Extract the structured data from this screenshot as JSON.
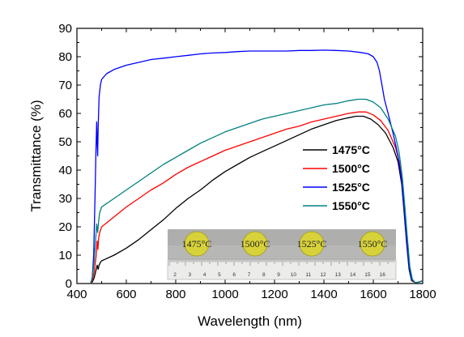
{
  "chart_data": {
    "type": "line",
    "title": "",
    "xlabel": "Wavelength (nm)",
    "ylabel": "Transmittance (%)",
    "xlim": [
      400,
      1800
    ],
    "ylim": [
      0,
      90
    ],
    "xticks": [
      400,
      600,
      800,
      1000,
      1200,
      1400,
      1600,
      1800
    ],
    "yticks": [
      0,
      10,
      20,
      30,
      40,
      50,
      60,
      70,
      80,
      90
    ],
    "grid": false,
    "legend_position": "right",
    "series": [
      {
        "name": "1475°C",
        "color": "#000000",
        "points": [
          [
            455,
            0
          ],
          [
            462,
            0.5
          ],
          [
            470,
            2
          ],
          [
            478,
            5
          ],
          [
            482,
            6.5
          ],
          [
            486,
            5
          ],
          [
            490,
            6.5
          ],
          [
            495,
            7.5
          ],
          [
            500,
            8
          ],
          [
            550,
            10
          ],
          [
            600,
            12.5
          ],
          [
            650,
            15.5
          ],
          [
            700,
            19
          ],
          [
            750,
            22.5
          ],
          [
            800,
            26.5
          ],
          [
            850,
            30
          ],
          [
            900,
            33
          ],
          [
            950,
            36.5
          ],
          [
            1000,
            39.5
          ],
          [
            1050,
            42
          ],
          [
            1100,
            44.5
          ],
          [
            1150,
            46.5
          ],
          [
            1200,
            48.5
          ],
          [
            1250,
            50.5
          ],
          [
            1300,
            52.5
          ],
          [
            1350,
            54.5
          ],
          [
            1400,
            56
          ],
          [
            1450,
            57.5
          ],
          [
            1500,
            58.5
          ],
          [
            1530,
            59
          ],
          [
            1560,
            59
          ],
          [
            1590,
            58
          ],
          [
            1620,
            56
          ],
          [
            1650,
            53
          ],
          [
            1680,
            48
          ],
          [
            1700,
            43
          ],
          [
            1715,
            35
          ],
          [
            1725,
            25
          ],
          [
            1735,
            14
          ],
          [
            1745,
            5
          ],
          [
            1755,
            1
          ],
          [
            1770,
            0.3
          ],
          [
            1785,
            0.5
          ],
          [
            1800,
            1
          ]
        ]
      },
      {
        "name": "1500°C",
        "color": "#ff0000",
        "points": [
          [
            455,
            0
          ],
          [
            462,
            1
          ],
          [
            470,
            4
          ],
          [
            478,
            10
          ],
          [
            482,
            15
          ],
          [
            485,
            12
          ],
          [
            488,
            16
          ],
          [
            492,
            18
          ],
          [
            500,
            20
          ],
          [
            550,
            23.5
          ],
          [
            600,
            27
          ],
          [
            650,
            30
          ],
          [
            700,
            33
          ],
          [
            750,
            35.5
          ],
          [
            800,
            38.5
          ],
          [
            850,
            41
          ],
          [
            900,
            43
          ],
          [
            950,
            45
          ],
          [
            1000,
            47
          ],
          [
            1050,
            48.5
          ],
          [
            1100,
            50
          ],
          [
            1150,
            51.5
          ],
          [
            1200,
            53
          ],
          [
            1250,
            54.5
          ],
          [
            1300,
            55.5
          ],
          [
            1350,
            57
          ],
          [
            1400,
            58
          ],
          [
            1450,
            59
          ],
          [
            1500,
            60
          ],
          [
            1540,
            60.5
          ],
          [
            1570,
            60.5
          ],
          [
            1600,
            59.5
          ],
          [
            1630,
            57.5
          ],
          [
            1660,
            54
          ],
          [
            1690,
            48
          ],
          [
            1705,
            43
          ],
          [
            1718,
            35
          ],
          [
            1728,
            25
          ],
          [
            1738,
            14
          ],
          [
            1748,
            5
          ],
          [
            1758,
            1
          ],
          [
            1770,
            0.3
          ],
          [
            1785,
            0.5
          ],
          [
            1800,
            1
          ]
        ]
      },
      {
        "name": "1525°C",
        "color": "#0000ff",
        "points": [
          [
            455,
            0
          ],
          [
            462,
            2
          ],
          [
            468,
            10
          ],
          [
            473,
            30
          ],
          [
            477,
            47
          ],
          [
            480,
            57
          ],
          [
            482,
            50
          ],
          [
            484,
            45
          ],
          [
            486,
            55
          ],
          [
            490,
            66
          ],
          [
            495,
            70
          ],
          [
            500,
            72
          ],
          [
            520,
            74
          ],
          [
            550,
            75.5
          ],
          [
            600,
            77
          ],
          [
            650,
            78
          ],
          [
            700,
            79
          ],
          [
            750,
            79.5
          ],
          [
            800,
            80
          ],
          [
            850,
            80.5
          ],
          [
            900,
            81
          ],
          [
            950,
            81.3
          ],
          [
            1000,
            81.5
          ],
          [
            1050,
            81.8
          ],
          [
            1100,
            82
          ],
          [
            1150,
            82
          ],
          [
            1200,
            82
          ],
          [
            1250,
            82
          ],
          [
            1300,
            82.2
          ],
          [
            1350,
            82.2
          ],
          [
            1400,
            82.3
          ],
          [
            1450,
            82.2
          ],
          [
            1500,
            82
          ],
          [
            1550,
            81.5
          ],
          [
            1580,
            81
          ],
          [
            1600,
            80
          ],
          [
            1615,
            78
          ],
          [
            1625,
            75
          ],
          [
            1635,
            70
          ],
          [
            1645,
            65
          ],
          [
            1660,
            60
          ],
          [
            1680,
            53
          ],
          [
            1700,
            45
          ],
          [
            1715,
            36
          ],
          [
            1725,
            26
          ],
          [
            1735,
            15
          ],
          [
            1745,
            6
          ],
          [
            1755,
            1.5
          ],
          [
            1770,
            0.3
          ],
          [
            1785,
            0.5
          ],
          [
            1800,
            1
          ]
        ]
      },
      {
        "name": "1550°C",
        "color": "#008080",
        "points": [
          [
            455,
            0
          ],
          [
            462,
            2
          ],
          [
            470,
            8
          ],
          [
            476,
            16
          ],
          [
            480,
            21
          ],
          [
            484,
            18
          ],
          [
            488,
            22
          ],
          [
            492,
            25
          ],
          [
            500,
            27
          ],
          [
            550,
            30
          ],
          [
            600,
            33
          ],
          [
            650,
            36
          ],
          [
            700,
            39
          ],
          [
            750,
            42
          ],
          [
            800,
            44.5
          ],
          [
            850,
            47
          ],
          [
            900,
            49.5
          ],
          [
            950,
            51.5
          ],
          [
            1000,
            53.5
          ],
          [
            1050,
            55
          ],
          [
            1100,
            56.5
          ],
          [
            1150,
            58
          ],
          [
            1200,
            59
          ],
          [
            1250,
            60
          ],
          [
            1300,
            61
          ],
          [
            1350,
            62
          ],
          [
            1400,
            63
          ],
          [
            1450,
            63.5
          ],
          [
            1500,
            64.5
          ],
          [
            1540,
            65
          ],
          [
            1570,
            65
          ],
          [
            1600,
            64
          ],
          [
            1630,
            62
          ],
          [
            1660,
            58
          ],
          [
            1690,
            52
          ],
          [
            1705,
            46
          ],
          [
            1718,
            37
          ],
          [
            1728,
            27
          ],
          [
            1738,
            16
          ],
          [
            1748,
            6
          ],
          [
            1758,
            1.5
          ],
          [
            1770,
            0.3
          ],
          [
            1785,
            0.5
          ],
          [
            1800,
            1
          ]
        ]
      }
    ],
    "inset_photo_labels": [
      "1475°C",
      "1500°C",
      "1525°C",
      "1550°C"
    ],
    "inset_ruler_labels": [
      "2",
      "3",
      "4",
      "5",
      "6",
      "7",
      "8",
      "9",
      "10",
      "11",
      "12",
      "13",
      "14",
      "15",
      "16"
    ]
  }
}
